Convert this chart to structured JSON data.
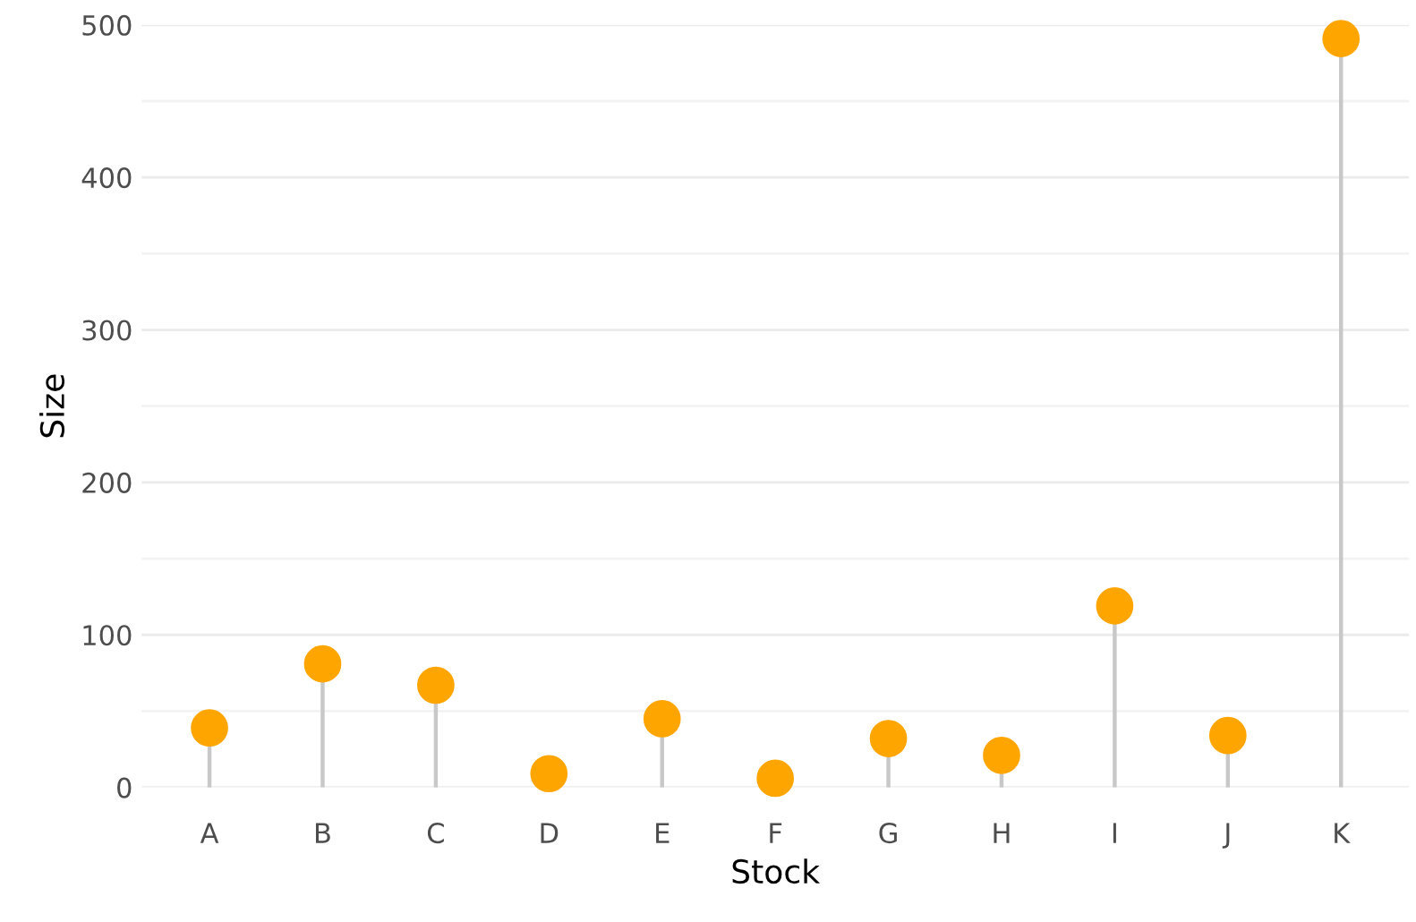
{
  "chart_data": {
    "type": "lollipop",
    "xlabel": "Stock",
    "ylabel": "Size",
    "categories": [
      "A",
      "B",
      "C",
      "D",
      "E",
      "F",
      "G",
      "H",
      "I",
      "J",
      "K"
    ],
    "values": [
      39,
      81,
      67,
      9,
      45,
      6,
      32,
      21,
      119,
      34,
      491
    ],
    "color": "#ffa500",
    "marker": "circle",
    "ylim": [
      0,
      500
    ],
    "yticks": [
      0,
      {
        "value": 50,
        "label": null
      },
      100,
      {
        "value": 150,
        "label": null
      },
      200,
      {
        "value": 250,
        "label": null
      },
      300,
      {
        "value": 350,
        "label": null
      },
      400,
      {
        "value": 450,
        "label": null
      },
      500
    ],
    "grid": "y",
    "legend": false
  }
}
